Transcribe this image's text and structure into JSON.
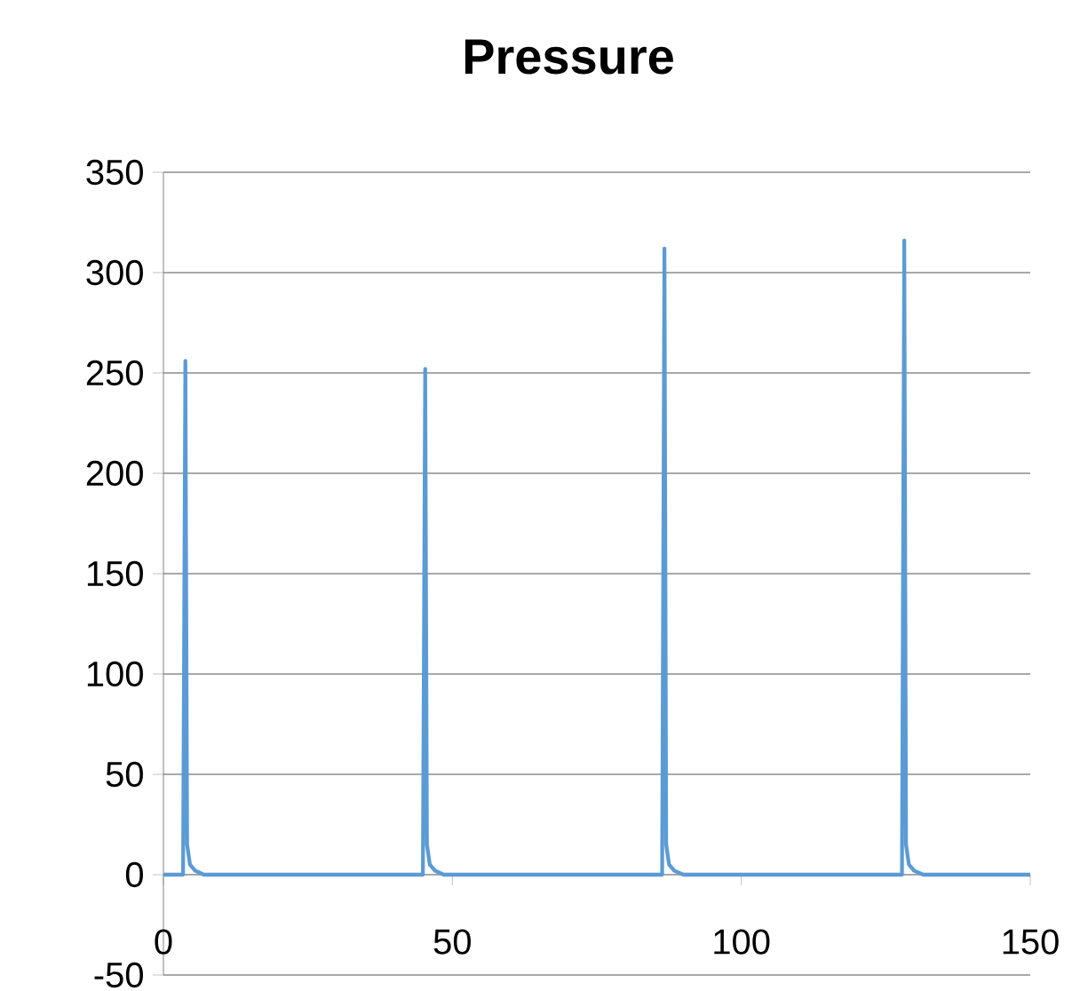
{
  "chart_data": {
    "type": "line",
    "title": "Pressure",
    "x": [
      0,
      3.4,
      3.8,
      4.1,
      4.6,
      5.5,
      7,
      44.9,
      45.3,
      45.6,
      46.1,
      47,
      48.5,
      86.3,
      86.7,
      87,
      87.5,
      88.4,
      90,
      127.8,
      128.2,
      128.5,
      129,
      129.9,
      131.5,
      150
    ],
    "series": [
      {
        "color": "#5b9bd5",
        "values": [
          0,
          0,
          256,
          15,
          5,
          2,
          0,
          0,
          252,
          15,
          5,
          2,
          0,
          0,
          312,
          15,
          5,
          2,
          0,
          0,
          316,
          15,
          5,
          2,
          0,
          0
        ]
      }
    ],
    "xlim": [
      0,
      150
    ],
    "ylim": [
      -50,
      350
    ],
    "xticks": [
      0,
      50,
      100,
      150
    ],
    "yticks": [
      -50,
      0,
      50,
      100,
      150,
      200,
      250,
      300,
      350
    ],
    "grid": "y",
    "marker": "none",
    "line_style": "solid"
  }
}
